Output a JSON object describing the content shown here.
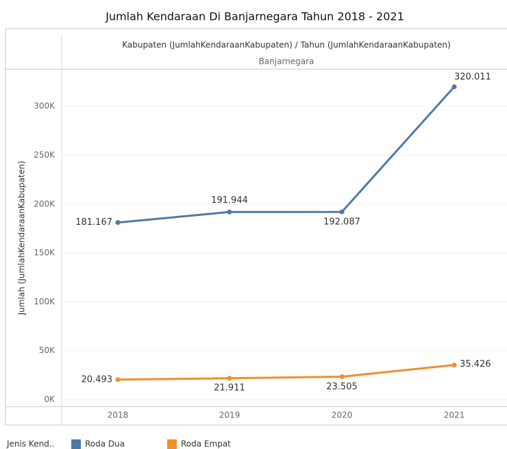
{
  "chart_data": {
    "type": "line",
    "title": "Jumlah Kendaraan Di Banjarnegara Tahun 2018 - 2021",
    "header": "Kabupaten (JumlahKendaraanKabupaten) / Tahun (JumlahKendaraanKabupaten)",
    "pane": "Banjarnegara",
    "y_label": "Jumlah (JumlahKendaraanKabupaten)",
    "legend_title": "Jenis Kend..",
    "categories": [
      "2018",
      "2019",
      "2020",
      "2021"
    ],
    "series": [
      {
        "name": "Roda Dua",
        "color": "#4e79a7",
        "values": [
          181167,
          191944,
          192087,
          320011
        ],
        "value_labels": [
          "181.167",
          "191.944",
          "192.087",
          "320.011"
        ]
      },
      {
        "name": "Roda Empat",
        "color": "#f28e2b",
        "values": [
          20493,
          21911,
          23505,
          35426
        ],
        "value_labels": [
          "20.493",
          "21.911",
          "23.505",
          "35.426"
        ]
      }
    ],
    "ylim": [
      -7000,
      338000
    ],
    "yticks": [
      {
        "value": 0,
        "label": "0K"
      },
      {
        "value": 50000,
        "label": "50K"
      },
      {
        "value": 100000,
        "label": "100K"
      },
      {
        "value": 150000,
        "label": "150K"
      },
      {
        "value": 200000,
        "label": "200K"
      },
      {
        "value": 250000,
        "label": "250K"
      },
      {
        "value": 300000,
        "label": "300K"
      }
    ],
    "grid": true
  }
}
